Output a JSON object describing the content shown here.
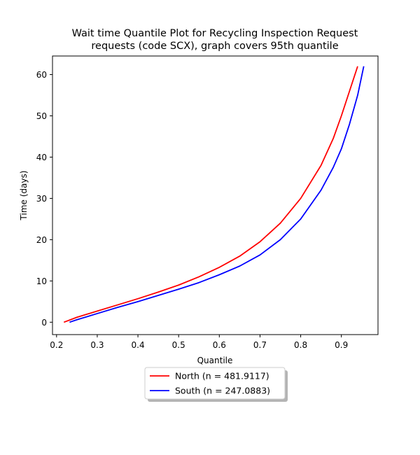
{
  "chart_data": {
    "type": "line",
    "title_lines": [
      "Wait time Quantile Plot for Recycling Inspection Request",
      "requests (code SCX), graph covers 95th quantile"
    ],
    "xlabel": "Quantile",
    "ylabel": "Time (days)",
    "xlim": [
      0.19,
      0.99
    ],
    "ylim": [
      -3.0,
      64.5
    ],
    "xticks": [
      0.2,
      0.3,
      0.4,
      0.5,
      0.6,
      0.7,
      0.8,
      0.9
    ],
    "xtick_labels": [
      "0.2",
      "0.3",
      "0.4",
      "0.5",
      "0.6",
      "0.7",
      "0.8",
      "0.9"
    ],
    "yticks": [
      0,
      10,
      20,
      30,
      40,
      50,
      60
    ],
    "ytick_labels": [
      "0",
      "10",
      "20",
      "30",
      "40",
      "50",
      "60"
    ],
    "grid": false,
    "legend_position": "below-center",
    "series": [
      {
        "name": "North (n = 481.9117)",
        "color": "#ff0000",
        "x": [
          0.218,
          0.25,
          0.3,
          0.35,
          0.4,
          0.45,
          0.5,
          0.55,
          0.6,
          0.65,
          0.7,
          0.75,
          0.8,
          0.85,
          0.88,
          0.9,
          0.92,
          0.94
        ],
        "y": [
          0.0,
          1.2,
          2.7,
          4.2,
          5.7,
          7.3,
          9.0,
          11.0,
          13.3,
          16.0,
          19.5,
          24.0,
          30.0,
          38.0,
          44.5,
          50.0,
          56.0,
          62.0
        ]
      },
      {
        "name": "South (n = 247.0883)",
        "color": "#0000ff",
        "x": [
          0.232,
          0.25,
          0.3,
          0.35,
          0.4,
          0.45,
          0.5,
          0.55,
          0.6,
          0.65,
          0.7,
          0.75,
          0.8,
          0.85,
          0.88,
          0.9,
          0.92,
          0.94,
          0.955
        ],
        "y": [
          0.0,
          0.6,
          2.1,
          3.6,
          5.0,
          6.5,
          8.0,
          9.6,
          11.5,
          13.6,
          16.3,
          20.0,
          25.0,
          32.0,
          37.5,
          42.0,
          48.0,
          55.0,
          62.0
        ]
      }
    ]
  }
}
